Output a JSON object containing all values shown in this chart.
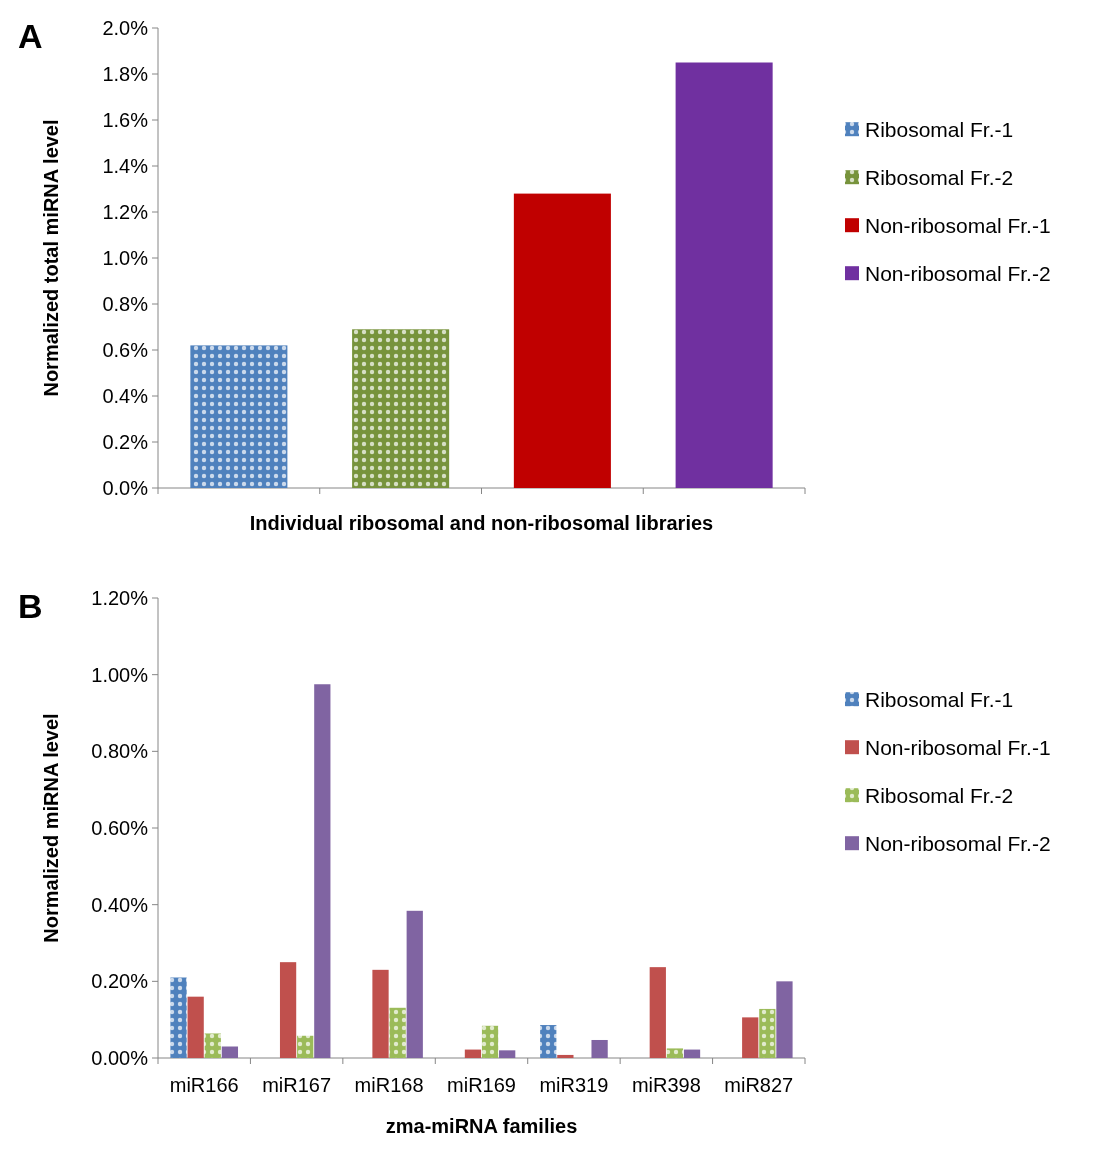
{
  "chart_data": [
    {
      "type": "bar",
      "stacked": true,
      "annotations": [
        "A"
      ],
      "xlabel": "Individual ribosomal and non-ribosomal libraries",
      "ylabel": "Normalized total miRNA level",
      "categories": [
        null,
        null,
        null,
        null
      ],
      "legend": "right",
      "ylim": [
        0,
        2
      ],
      "yticks": [
        {
          "value": 0,
          "label": "0.0%"
        },
        {
          "value": 0.2,
          "label": "0.2%"
        },
        {
          "value": 0.4,
          "label": "0.4%"
        },
        {
          "value": 0.6,
          "label": "0.6%"
        },
        {
          "value": 0.8,
          "label": "0.8%"
        },
        {
          "value": 1.0,
          "label": "1.0%"
        },
        {
          "value": 1.2,
          "label": "1.2%"
        },
        {
          "value": 1.4,
          "label": "1.4%"
        },
        {
          "value": 1.6,
          "label": "1.6%"
        },
        {
          "value": 1.8,
          "label": "1.8%"
        },
        {
          "value": 2.0,
          "label": "2.0%"
        }
      ],
      "series": [
        {
          "name": "Ribosomal Fr.-1",
          "color": "#4f81bd",
          "values": [
            0.62,
            null,
            null,
            null
          ]
        },
        {
          "name": "Ribosomal Fr.-2",
          "color": "#77933c",
          "values": [
            null,
            0.69,
            null,
            null
          ]
        },
        {
          "name": "Non-ribosomal Fr.-1",
          "color": "#c00000",
          "values": [
            null,
            null,
            1.28,
            null
          ]
        },
        {
          "name": "Non-ribosomal Fr.-2",
          "color": "#7030a0",
          "values": [
            null,
            null,
            null,
            1.85
          ]
        }
      ]
    },
    {
      "type": "bar",
      "annotations": [
        "B"
      ],
      "xlabel": "zma-miRNA families",
      "ylabel": "Normalized miRNA level",
      "categories": [
        "miR166",
        "miR167",
        "miR168",
        "miR169",
        "miR319",
        "miR398",
        "miR827"
      ],
      "legend": "right",
      "ylim": [
        0,
        1.2
      ],
      "yticks": [
        {
          "value": 0,
          "label": "0.00%"
        },
        {
          "value": 0.2,
          "label": "0.20%"
        },
        {
          "value": 0.4,
          "label": "0.40%"
        },
        {
          "value": 0.6,
          "label": "0.60%"
        },
        {
          "value": 0.8,
          "label": "0.80%"
        },
        {
          "value": 1.0,
          "label": "1.00%"
        },
        {
          "value": 1.2,
          "label": "1.20%"
        }
      ],
      "series": [
        {
          "name": "Ribosomal Fr.-1",
          "color": "#4f81bd",
          "values": [
            0.21,
            null,
            null,
            null,
            0.086,
            null,
            null
          ]
        },
        {
          "name": "Non-ribosomal Fr.-1",
          "color": "#c0504d",
          "values": [
            0.16,
            0.25,
            0.23,
            0.022,
            0.008,
            0.237,
            0.106
          ]
        },
        {
          "name": "Ribosomal Fr.-2",
          "color": "#9bbb59",
          "values": [
            0.064,
            0.058,
            0.131,
            0.084,
            null,
            0.025,
            0.128
          ]
        },
        {
          "name": "Non-ribosomal Fr.-2",
          "color": "#8064a2",
          "values": [
            0.03,
            0.975,
            0.384,
            0.02,
            0.047,
            0.022,
            0.2
          ]
        }
      ]
    }
  ]
}
